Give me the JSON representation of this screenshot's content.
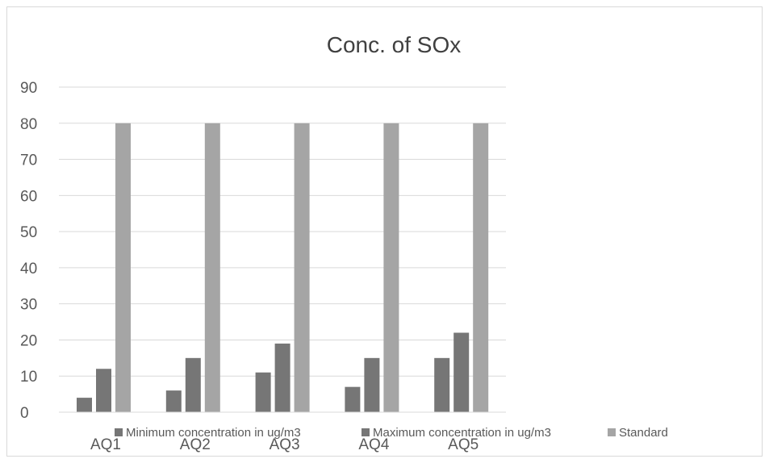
{
  "chart_data": {
    "type": "bar",
    "title": "Conc. of SOx",
    "xlabel": "",
    "ylabel": "",
    "categories": [
      "AQ1",
      "AQ2",
      "AQ3",
      "AQ4",
      "AQ5"
    ],
    "series": [
      {
        "name": "Minimum concentration in ug/m3",
        "values": [
          4,
          6,
          11,
          7,
          15
        ],
        "color": "#767676"
      },
      {
        "name": "Maximum concentration in ug/m3",
        "values": [
          12,
          15,
          19,
          15,
          22
        ],
        "color": "#767676"
      },
      {
        "name": "Standard",
        "values": [
          80,
          80,
          80,
          80,
          80
        ],
        "color": "#a5a5a5"
      }
    ],
    "ylim": [
      0,
      90
    ],
    "yticks": [
      0,
      10,
      20,
      30,
      40,
      50,
      60,
      70,
      80,
      90
    ],
    "grid": true,
    "legend": "bottom"
  }
}
